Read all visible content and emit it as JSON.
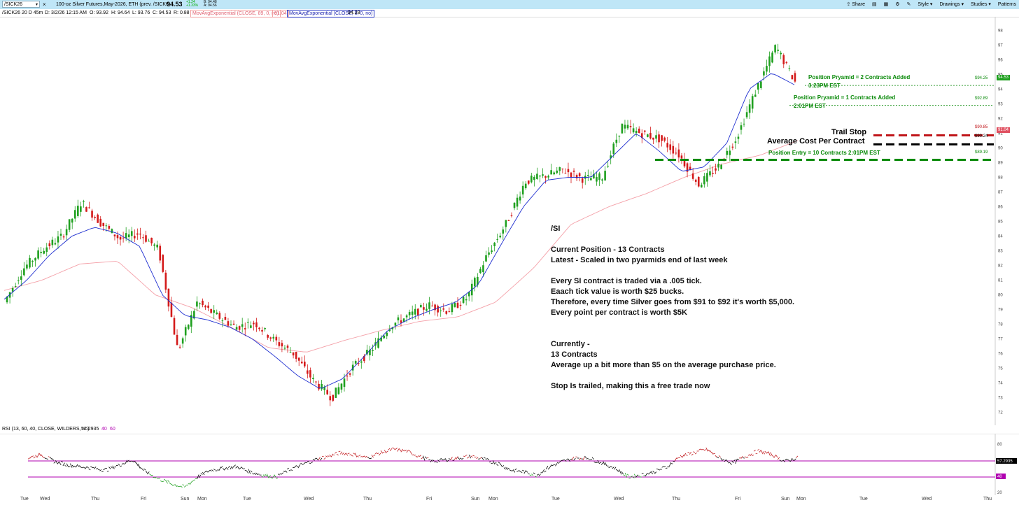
{
  "toolbar": {
    "symbol": "/SICK26",
    "description": "100-oz Silver Futures,May-2026, ETH (prev. /SICK6)",
    "last_price": "94.53",
    "change_abs": "+1.24",
    "change_pct": "+1.33%",
    "bid": "B: 94.48",
    "ask": "A: 94.56",
    "share": "Share",
    "style": "Style",
    "drawings": "Drawings",
    "studies": "Studies",
    "patterns": "Patterns"
  },
  "infobar": {
    "period": "/SICK26 20 D 45m",
    "date": "D: 3/2/26 12:15 AM",
    "open": "O: 93.92",
    "high": "H: 94.64",
    "low": "L: 93.76",
    "close": "C: 94.53",
    "range": "R: 0.88",
    "ma1_label": "MovAvgExponential (CLOSE, 89, 0, no)",
    "ma1_value": "91.04",
    "ma2_label": "MovAvgExponential (CLOSE, 8, 0, no)",
    "ma2_value": "94.28"
  },
  "colors": {
    "up": "#1fa01f",
    "down": "#d41a1a",
    "ema89": "#f4a0a8",
    "ema8": "#1f2fd0",
    "trail": "#c0161a",
    "avg": "#000000",
    "entry": "#0a8a0a",
    "rsi_line": "#000000",
    "rsi_high": "#c0161a",
    "rsi_low": "#1fa01f",
    "rsi_band": "#b000b0"
  },
  "annotations": {
    "pyramid2_line1": "Position Pryamid = 2 Contracts Added",
    "pyramid2_line2": "3:23PM EST",
    "pyramid1_line1": "Position Pryamid = 1 Contracts Added",
    "pyramid1_line2": "2:01PM EST",
    "trail_stop": "Trail Stop",
    "avg_cost": "Average Cost Per Contract",
    "entry": "Position Entry = 10 Contracts 2:01PM EST",
    "price_9425": "$94.25",
    "price_9289": "$92.89",
    "price_9085": "$90.85",
    "price_9024": "$90.24",
    "price_8919": "$89.19",
    "tag_last": "94.53",
    "tag_ema": "91.04"
  },
  "notes": [
    "/SI",
    "",
    "Current Position - 13 Contracts",
    "Latest - Scaled in two pyarmids end of last week",
    "",
    "Every SI contract is traded via a .005 tick.",
    "Eaach tick value is worth $25 bucks.",
    "Therefore, every time Silver goes from $91 to $92 it's worth $5,000.",
    "Every point per contract is worth $5K",
    "",
    "",
    "Currently -",
    "13 Contracts",
    "Average up a bit more than $5 on the average purchase price.",
    "",
    "Stop Is trailed, making this a free trade now"
  ],
  "rsi": {
    "label": "RSI (13, 60, 40, CLOSE, WILDERS, no)",
    "value": "57.2935",
    "low_level": "40",
    "high_level": "60",
    "axis": [
      "80",
      "60",
      "40",
      "20"
    ],
    "tag_value": "57.2935",
    "tag_low": "40"
  },
  "chart_data": {
    "type": "candlestick",
    "y_ticks": [
      98,
      97,
      96,
      95,
      94,
      93,
      92,
      91,
      90,
      89,
      88,
      87,
      86,
      85,
      84,
      83,
      82,
      81,
      80,
      79,
      78,
      77,
      76,
      75,
      74,
      73,
      72
    ],
    "ylim": [
      71.7,
      98.3
    ],
    "x_labels": [
      "Tue",
      "Wed",
      "Thu",
      "Fri",
      "Sun",
      "Mon",
      "Tue",
      "Wed",
      "Thu",
      "Fri",
      "Sun",
      "Mon",
      "Tue",
      "Wed",
      "Thu",
      "Fri",
      "Sun",
      "Mon",
      "Tue",
      "Wed",
      "Thu"
    ],
    "closes_approx": [
      79.5,
      81.8,
      83.1,
      84.0,
      86.3,
      84.9,
      83.8,
      84.2,
      83.1,
      76.2,
      79.5,
      78.6,
      77.8,
      78.1,
      76.9,
      76.0,
      74.2,
      73.0,
      75.0,
      76.2,
      77.9,
      78.6,
      79.3,
      78.9,
      79.8,
      82.6,
      84.8,
      87.7,
      88.1,
      88.5,
      87.9,
      88.0,
      91.5,
      91.0,
      90.6,
      89.5,
      87.5,
      88.7,
      90.8,
      94.0,
      96.9,
      94.5
    ],
    "ema8_approx": [
      79.7,
      81.0,
      82.7,
      84.0,
      84.6,
      84.2,
      83.3,
      80.0,
      78.6,
      78.3,
      77.8,
      77.0,
      75.8,
      74.5,
      73.6,
      74.3,
      75.9,
      77.6,
      78.4,
      79.0,
      79.5,
      80.7,
      83.4,
      86.0,
      87.8,
      88.0,
      88.0,
      89.5,
      91.0,
      89.8,
      88.4,
      88.7,
      90.3,
      94.0,
      95.1,
      94.3
    ],
    "ema89_approx": [
      80.3,
      81.0,
      82.1,
      82.3,
      80.0,
      79.1,
      77.8,
      76.4,
      76.1,
      76.9,
      77.6,
      78.2,
      78.5,
      79.5,
      81.8,
      84.8,
      86.0,
      86.9,
      88.0,
      88.9,
      89.5,
      90.5
    ],
    "levels": [
      {
        "name": "Position Pryamid = 2 Contracts Added",
        "value": 94.25
      },
      {
        "name": "Position Pryamid = 1 Contracts Added",
        "value": 92.89
      },
      {
        "name": "Trail Stop",
        "value": 90.85
      },
      {
        "name": "Average Cost Per Contract",
        "value": 90.24
      },
      {
        "name": "Position Entry = 10 Contracts 2:01PM EST",
        "value": 89.19
      }
    ],
    "last_price": 94.53
  }
}
